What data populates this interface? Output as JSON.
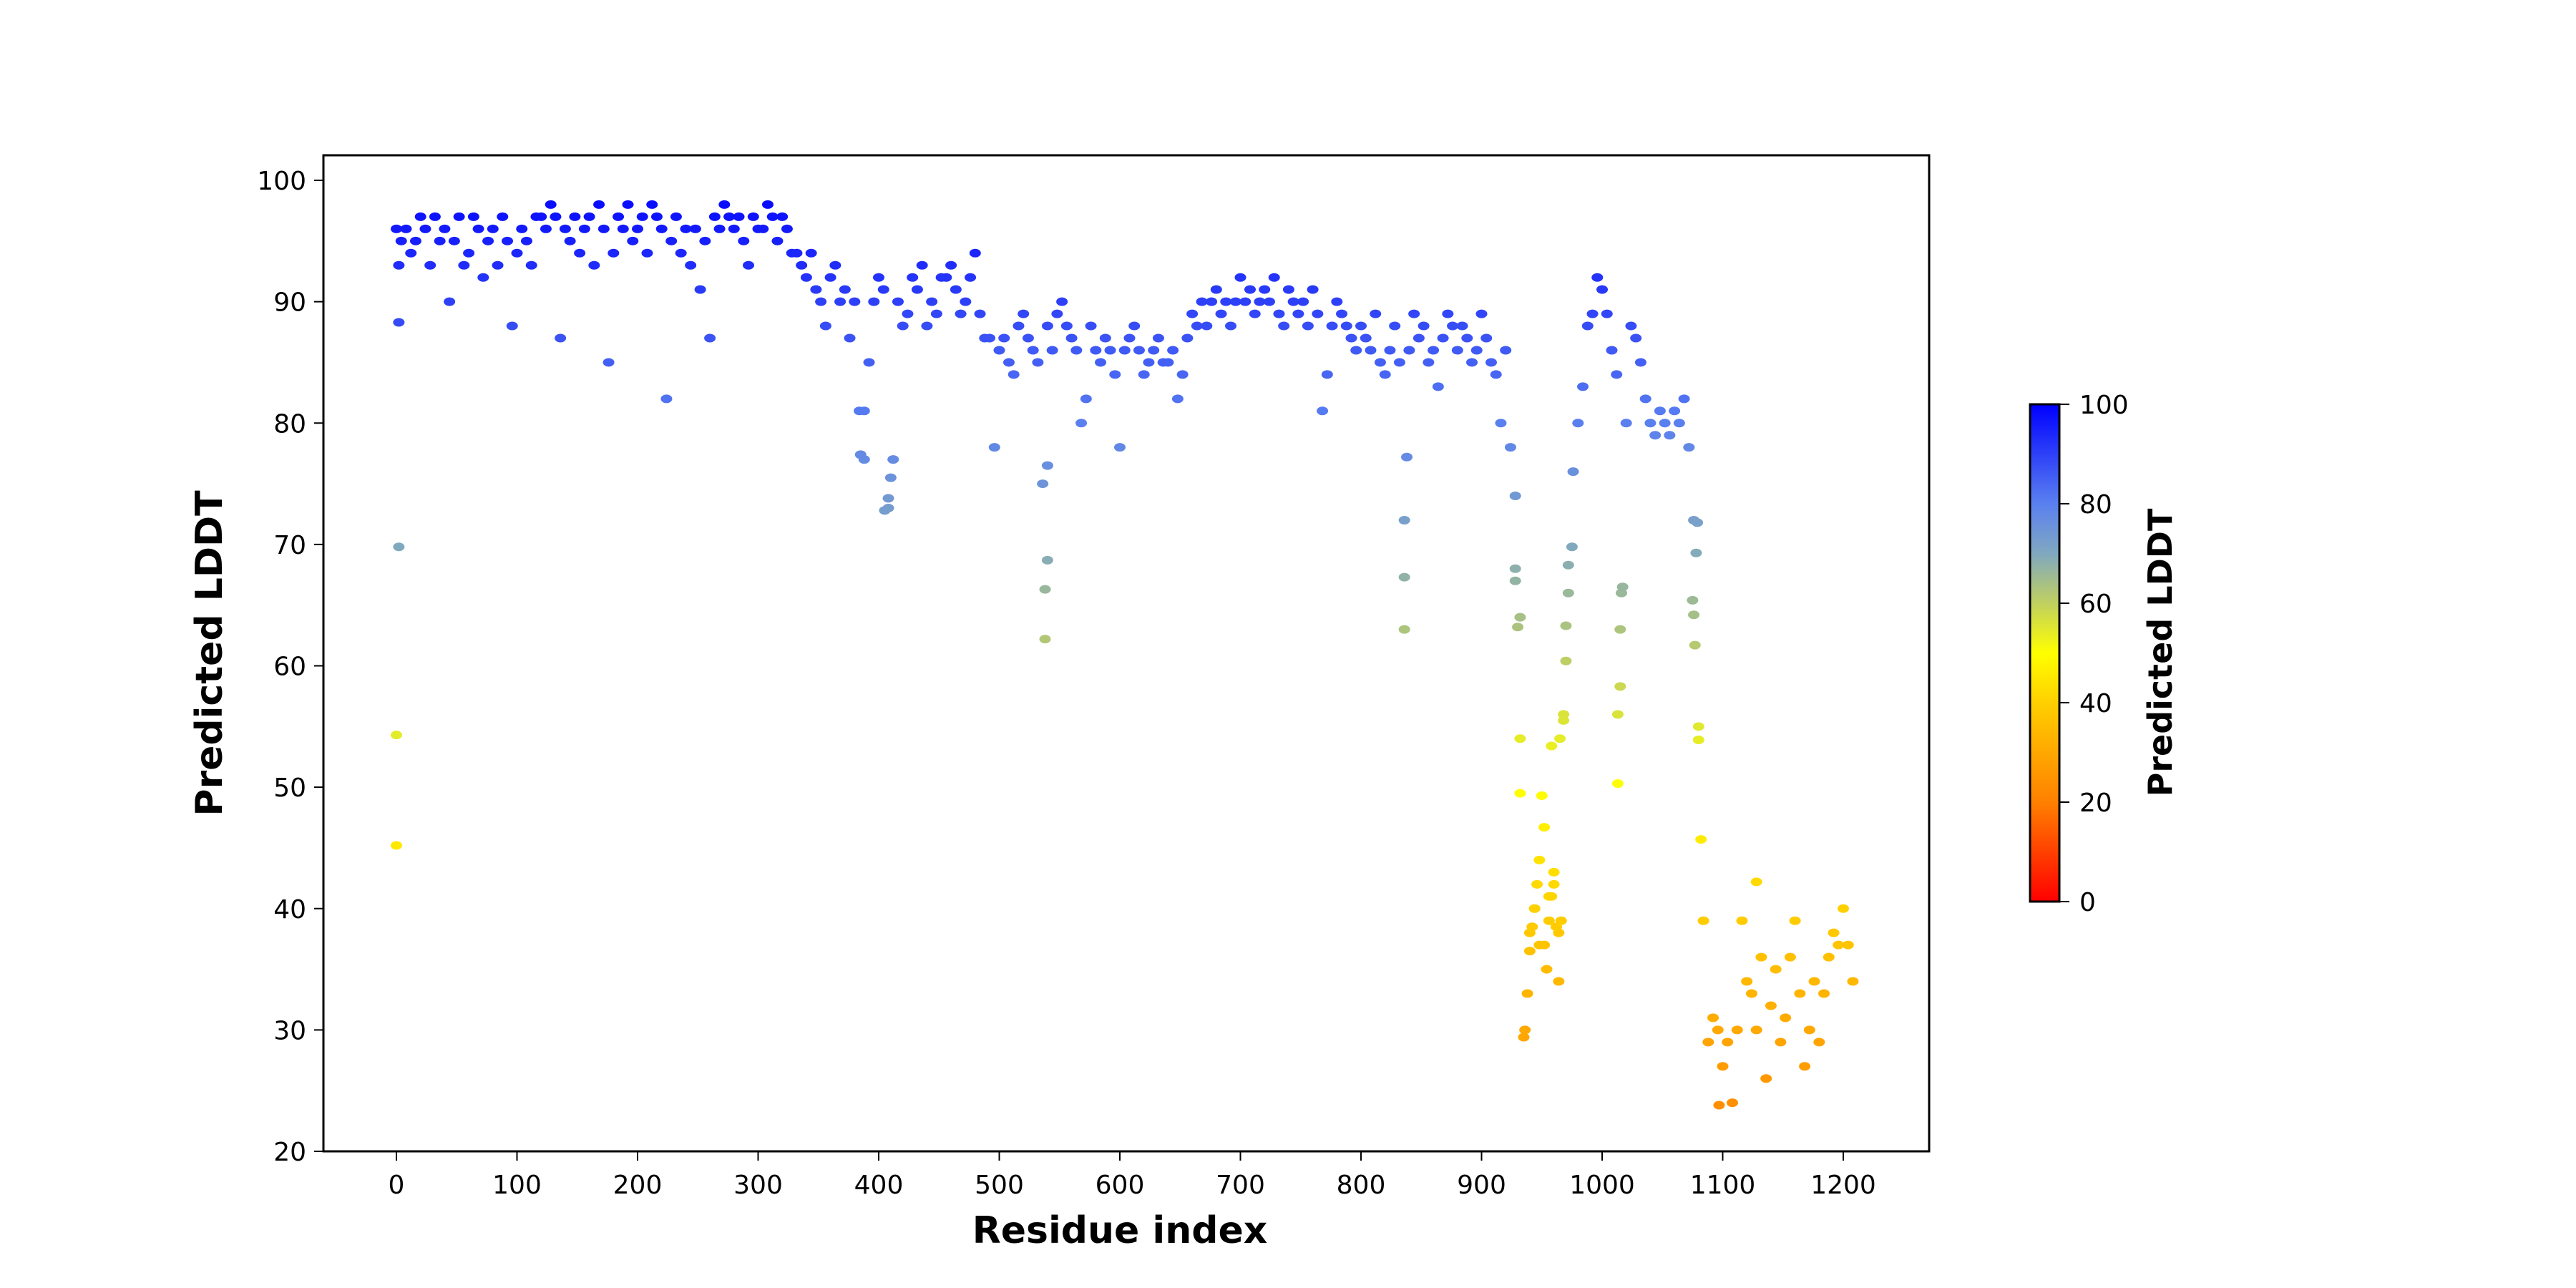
{
  "chart_data": {
    "type": "scatter",
    "title": "",
    "xlabel": "Residue index",
    "ylabel": "Predicted LDDT",
    "xlim": [
      -60,
      1260
    ],
    "ylim": [
      20,
      102
    ],
    "xticks": [
      0,
      100,
      200,
      300,
      400,
      500,
      600,
      700,
      800,
      900,
      1000,
      1100,
      1200
    ],
    "yticks": [
      20,
      30,
      40,
      50,
      60,
      70,
      80,
      90,
      100
    ],
    "grid": false,
    "x_step": 4,
    "y": [
      96,
      95,
      96,
      94,
      95,
      97,
      96,
      93,
      97,
      95,
      96,
      90,
      95,
      97,
      93,
      94,
      97,
      96,
      92,
      95,
      96,
      93,
      97,
      95,
      88,
      94,
      96,
      95,
      93,
      97,
      97,
      96,
      98,
      97,
      87,
      96,
      95,
      97,
      94,
      96,
      97,
      93,
      98,
      96,
      85,
      94,
      97,
      96,
      98,
      95,
      96,
      97,
      94,
      98,
      97,
      96,
      82,
      95,
      97,
      94,
      96,
      93,
      96,
      91,
      95,
      87,
      97,
      96,
      98,
      97,
      96,
      97,
      95,
      93,
      97,
      96,
      96,
      98,
      97,
      95,
      97,
      96,
      94,
      94,
      93,
      92,
      94,
      91,
      90,
      88,
      92,
      93,
      90,
      91,
      87,
      90,
      81,
      77,
      85,
      90,
      92,
      91,
      73,
      77,
      90,
      88,
      89,
      92,
      91,
      93,
      88,
      90,
      89,
      92,
      92,
      93,
      91,
      89,
      90,
      92,
      94,
      89,
      87,
      87,
      78,
      86,
      87,
      85,
      84,
      88,
      89,
      87,
      86,
      85,
      75,
      88,
      86,
      89,
      90,
      88,
      87,
      86,
      80,
      82,
      88,
      86,
      85,
      87,
      86,
      84,
      78,
      86,
      87,
      88,
      86,
      84,
      85,
      86,
      87,
      85,
      85,
      86,
      82,
      84,
      87,
      89,
      88,
      90,
      88,
      90,
      91,
      89,
      90,
      88,
      90,
      92,
      90,
      91,
      89,
      90,
      91,
      90,
      92,
      89,
      88,
      91,
      90,
      89,
      90,
      88,
      91,
      89,
      81,
      84,
      88,
      90,
      89,
      88,
      87,
      86,
      88,
      87,
      86,
      89,
      85,
      84,
      86,
      88,
      85,
      72,
      86,
      89,
      87,
      88,
      85,
      86,
      83,
      87,
      89,
      88,
      86,
      88,
      87,
      85,
      86,
      89,
      87,
      85,
      84,
      80,
      86,
      78,
      74,
      64,
      30,
      38,
      40,
      44,
      37,
      41,
      42,
      38,
      56,
      66,
      76,
      80,
      83,
      88,
      89,
      92,
      91,
      89,
      86,
      84,
      66,
      80,
      88,
      87,
      85,
      82,
      80,
      79,
      81,
      80,
      79,
      81,
      80,
      82,
      78,
      72,
      55,
      39,
      29,
      31,
      30,
      27,
      29,
      24,
      30,
      39,
      34,
      33,
      30,
      36,
      26,
      32,
      35,
      29,
      31,
      36,
      39,
      33,
      27,
      30,
      34,
      29,
      33,
      36,
      38,
      37,
      40,
      37,
      34
    ],
    "extra_points": [
      [
        0,
        45.2
      ],
      [
        0,
        54.3
      ],
      [
        2,
        69.8
      ],
      [
        2,
        88.3
      ],
      [
        2,
        93
      ],
      [
        385,
        77.4
      ],
      [
        388,
        81
      ],
      [
        405,
        72.8
      ],
      [
        408,
        73.8
      ],
      [
        410,
        75.5
      ],
      [
        538,
        62.2
      ],
      [
        538,
        66.3
      ],
      [
        540,
        68.7
      ],
      [
        540,
        76.5
      ],
      [
        836,
        63
      ],
      [
        836,
        67.3
      ],
      [
        838,
        77.2
      ],
      [
        928,
        67
      ],
      [
        928,
        68
      ],
      [
        930,
        63.2
      ],
      [
        932,
        54
      ],
      [
        932,
        49.5
      ],
      [
        935,
        29.4
      ],
      [
        938,
        33
      ],
      [
        940,
        36.5
      ],
      [
        942,
        38.5
      ],
      [
        944,
        40
      ],
      [
        946,
        42
      ],
      [
        948,
        37
      ],
      [
        950,
        49.3
      ],
      [
        952,
        46.7
      ],
      [
        954,
        35
      ],
      [
        956,
        39
      ],
      [
        958,
        53.4
      ],
      [
        958,
        41
      ],
      [
        960,
        43
      ],
      [
        962,
        38.5
      ],
      [
        964,
        34
      ],
      [
        965,
        54
      ],
      [
        966,
        39
      ],
      [
        968,
        55.5
      ],
      [
        970,
        63.3
      ],
      [
        970,
        60.4
      ],
      [
        972,
        68.3
      ],
      [
        975,
        69.8
      ],
      [
        1013,
        50.3
      ],
      [
        1013,
        56
      ],
      [
        1015,
        58.3
      ],
      [
        1015,
        63
      ],
      [
        1017,
        66.5
      ],
      [
        1075,
        65.4
      ],
      [
        1076,
        64.2
      ],
      [
        1077,
        61.7
      ],
      [
        1078,
        69.3
      ],
      [
        1079,
        71.8
      ],
      [
        1080,
        53.9
      ],
      [
        1082,
        45.7
      ],
      [
        1097,
        23.8
      ],
      [
        1128,
        42.2
      ]
    ],
    "colorbar": {
      "label": "Predicted LDDT",
      "range": [
        0,
        100
      ],
      "ticks": [
        0,
        20,
        40,
        60,
        80,
        100
      ],
      "colormap_stops": [
        [
          0,
          "#ff0000"
        ],
        [
          20,
          "#ff8000"
        ],
        [
          40,
          "#ffd000"
        ],
        [
          50,
          "#ffff00"
        ],
        [
          60,
          "#c0d060"
        ],
        [
          70,
          "#80a8c0"
        ],
        [
          80,
          "#5a80f0"
        ],
        [
          100,
          "#0000ff"
        ]
      ]
    }
  }
}
